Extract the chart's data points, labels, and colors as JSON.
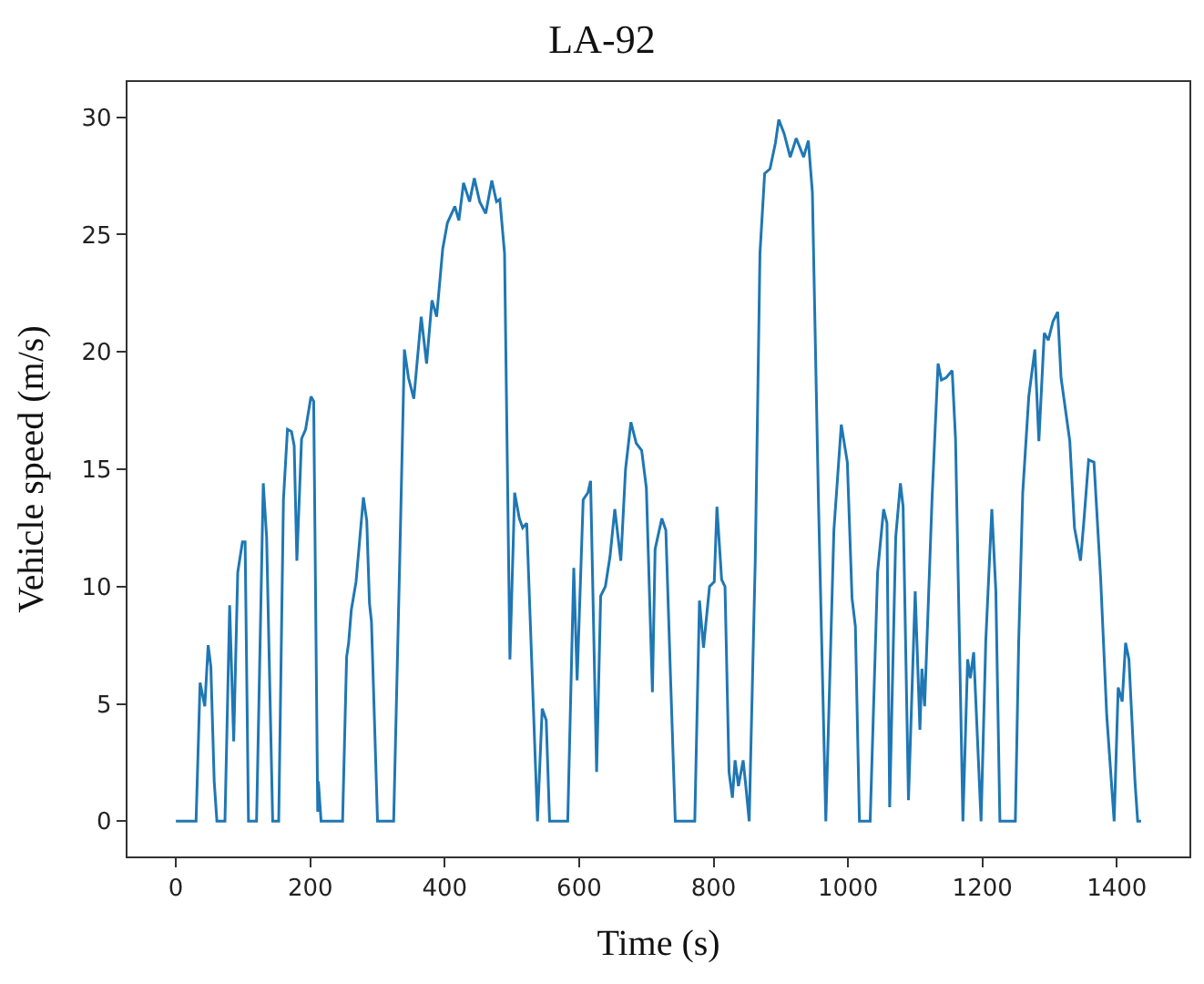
{
  "chart_data": {
    "type": "line",
    "title": "LA-92",
    "xlabel": "Time (s)",
    "ylabel": "Vehicle speed (m/s)",
    "xlim": [
      -72,
      1508
    ],
    "ylim": [
      -1.5,
      31.5
    ],
    "xticks": [
      0,
      200,
      400,
      600,
      800,
      1000,
      1200,
      1400
    ],
    "yticks": [
      0,
      5,
      10,
      15,
      20,
      25,
      30
    ],
    "grid": false,
    "marker": "none",
    "line_style": "solid",
    "series": [
      {
        "color": "#1f77b4",
        "x": [
          0,
          30,
          36,
          43,
          48,
          52,
          57,
          61,
          73,
          80,
          86,
          92,
          99,
          103,
          108,
          120,
          130,
          135,
          144,
          153,
          160,
          166,
          172,
          176,
          180,
          187,
          193,
          201,
          205,
          211,
          212,
          216,
          248,
          254,
          257,
          261,
          268,
          279,
          284,
          288,
          291,
          300,
          324,
          333,
          340,
          346,
          354,
          365,
          373,
          381,
          388,
          397,
          404,
          415,
          421,
          428,
          437,
          444,
          452,
          461,
          470,
          477,
          482,
          489,
          497,
          504,
          511,
          516,
          522,
          538,
          545,
          551,
          556,
          583,
          592,
          597,
          606,
          613,
          617,
          626,
          632,
          639,
          646,
          653,
          662,
          669,
          677,
          685,
          693,
          700,
          709,
          713,
          723,
          729,
          736,
          743,
          772,
          779,
          785,
          794,
          801,
          805,
          812,
          817,
          823,
          828,
          832,
          837,
          844,
          848,
          853,
          862,
          869,
          876,
          884,
          892,
          897,
          905,
          914,
          923,
          934,
          941,
          947,
          956,
          967,
          979,
          990,
          999,
          1006,
          1011,
          1017,
          1033,
          1044,
          1053,
          1058,
          1062,
          1071,
          1078,
          1082,
          1090,
          1100,
          1107,
          1110,
          1114,
          1125,
          1134,
          1139,
          1146,
          1155,
          1160,
          1171,
          1178,
          1182,
          1187,
          1198,
          1205,
          1214,
          1220,
          1226,
          1249,
          1254,
          1260,
          1269,
          1278,
          1284,
          1292,
          1298,
          1305,
          1312,
          1317,
          1330,
          1337,
          1346,
          1351,
          1358,
          1366,
          1376,
          1385,
          1396,
          1402,
          1408,
          1413,
          1418,
          1427,
          1431,
          1436
        ],
        "values": [
          0,
          0,
          5.9,
          4.9,
          7.5,
          6.6,
          1.7,
          0,
          0,
          9.2,
          3.4,
          10.6,
          11.9,
          11.9,
          0,
          0,
          14.4,
          12.1,
          0,
          0,
          13.7,
          16.7,
          16.6,
          16.0,
          11.1,
          16.3,
          16.7,
          18.1,
          17.9,
          0.4,
          1.7,
          0,
          0,
          7.0,
          7.6,
          9.0,
          10.2,
          13.8,
          12.8,
          9.3,
          8.5,
          0,
          0,
          11.1,
          20.1,
          18.9,
          18.0,
          21.5,
          19.5,
          22.2,
          21.5,
          24.4,
          25.5,
          26.2,
          25.6,
          27.2,
          26.4,
          27.4,
          26.4,
          25.9,
          27.3,
          26.4,
          26.5,
          24.2,
          6.9,
          14.0,
          12.9,
          12.5,
          12.7,
          0,
          4.8,
          4.3,
          0,
          0,
          10.8,
          6.0,
          13.7,
          14.0,
          14.5,
          2.1,
          9.6,
          10.0,
          11.3,
          13.3,
          11.1,
          15.0,
          17.0,
          16.1,
          15.8,
          14.2,
          5.5,
          11.6,
          12.9,
          12.4,
          6.1,
          0,
          0,
          9.4,
          7.4,
          10.0,
          10.2,
          13.4,
          10.3,
          10.0,
          2.1,
          1.0,
          2.6,
          1.5,
          2.6,
          1.5,
          0,
          11.1,
          24.2,
          27.6,
          27.8,
          28.9,
          29.9,
          29.3,
          28.3,
          29.1,
          28.3,
          29.0,
          26.8,
          13.7,
          0,
          12.4,
          16.9,
          15.3,
          9.5,
          8.3,
          0,
          0,
          10.6,
          13.3,
          12.7,
          0.6,
          12.1,
          14.4,
          13.4,
          0.9,
          9.8,
          3.9,
          6.5,
          4.9,
          13.7,
          19.5,
          18.8,
          18.9,
          19.2,
          16.3,
          0,
          6.9,
          6.1,
          7.2,
          0,
          7.7,
          13.3,
          9.8,
          0,
          0,
          7.7,
          14.0,
          18.1,
          20.1,
          16.2,
          20.8,
          20.5,
          21.3,
          21.7,
          18.9,
          16.2,
          12.5,
          11.1,
          12.8,
          15.4,
          15.3,
          10.3,
          4.5,
          0,
          5.7,
          5.1,
          7.6,
          6.9,
          1.7,
          0,
          0
        ]
      }
    ]
  }
}
